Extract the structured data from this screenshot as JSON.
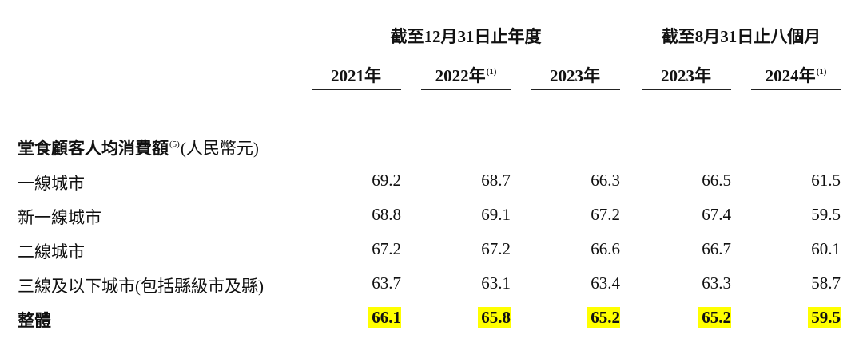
{
  "header": {
    "groups": [
      {
        "label": "截至12月31日止年度"
      },
      {
        "label": "截至8月31日止八個月"
      }
    ],
    "years": [
      {
        "label": "2021年",
        "note": ""
      },
      {
        "label": "2022年",
        "note": "(1)"
      },
      {
        "label": "2023年",
        "note": ""
      },
      {
        "label": "2023年",
        "note": ""
      },
      {
        "label": "2024年",
        "note": "(1)"
      }
    ]
  },
  "section": {
    "title": "堂食顧客人均消費額",
    "note": "(5)",
    "unit": "(人民幣元)"
  },
  "rows": [
    {
      "label": "一線城市",
      "values": [
        "69.2",
        "68.7",
        "66.3",
        "66.5",
        "61.5"
      ]
    },
    {
      "label": "新一線城市",
      "values": [
        "68.8",
        "69.1",
        "67.2",
        "67.4",
        "59.5"
      ]
    },
    {
      "label": "二線城市",
      "values": [
        "67.2",
        "67.2",
        "66.6",
        "66.7",
        "60.1"
      ]
    },
    {
      "label": "三線及以下城市(包括縣級市及縣)",
      "values": [
        "63.7",
        "63.1",
        "63.4",
        "63.3",
        "58.7"
      ]
    }
  ],
  "total": {
    "label": "整體",
    "values": [
      "66.1",
      "65.8",
      "65.2",
      "65.2",
      "59.5"
    ],
    "highlight_color": "#ffff00"
  }
}
